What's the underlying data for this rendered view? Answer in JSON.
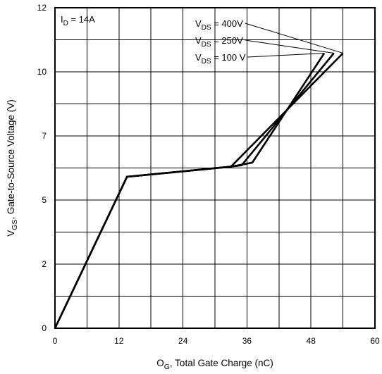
{
  "chart_data": {
    "type": "line",
    "xlabel": {
      "main": "O",
      "sub": "G",
      "rest": ", Total Gate Charge (nC)"
    },
    "ylabel": {
      "main": "V",
      "sub": "GS",
      "rest": ", Gate-to-Source Voltage (V)"
    },
    "xlim": [
      0,
      60
    ],
    "ylim": [
      0,
      12
    ],
    "xticks": [
      0,
      12,
      24,
      36,
      48,
      60
    ],
    "yticks": [
      {
        "value": 0,
        "label": "0"
      },
      {
        "value": 2.4,
        "label": "2"
      },
      {
        "value": 4.8,
        "label": "5"
      },
      {
        "value": 7.2,
        "label": "7"
      },
      {
        "value": 9.6,
        "label": "10"
      },
      {
        "value": 12,
        "label": "12"
      }
    ],
    "grid": true,
    "annotation": {
      "main": "I",
      "sub": "D",
      "rest": " = 14A"
    },
    "series": [
      {
        "name": {
          "main": "V",
          "sub": "DS",
          "rest": " = 400V"
        },
        "points": [
          [
            0,
            0
          ],
          [
            13.5,
            5.67
          ],
          [
            33,
            6.05
          ],
          [
            54,
            10.3
          ]
        ]
      },
      {
        "name": {
          "main": "V",
          "sub": "DS",
          "rest": " = 250V"
        },
        "points": [
          [
            0,
            0
          ],
          [
            13.5,
            5.67
          ],
          [
            33,
            6.05
          ],
          [
            35,
            6.1
          ],
          [
            52.3,
            10.3
          ]
        ]
      },
      {
        "name": {
          "main": "V",
          "sub": "DS",
          "rest": " = 100 V"
        },
        "points": [
          [
            0,
            0
          ],
          [
            13.5,
            5.67
          ],
          [
            33,
            6.05
          ],
          [
            37,
            6.2
          ],
          [
            50.5,
            10.3
          ]
        ]
      }
    ]
  }
}
